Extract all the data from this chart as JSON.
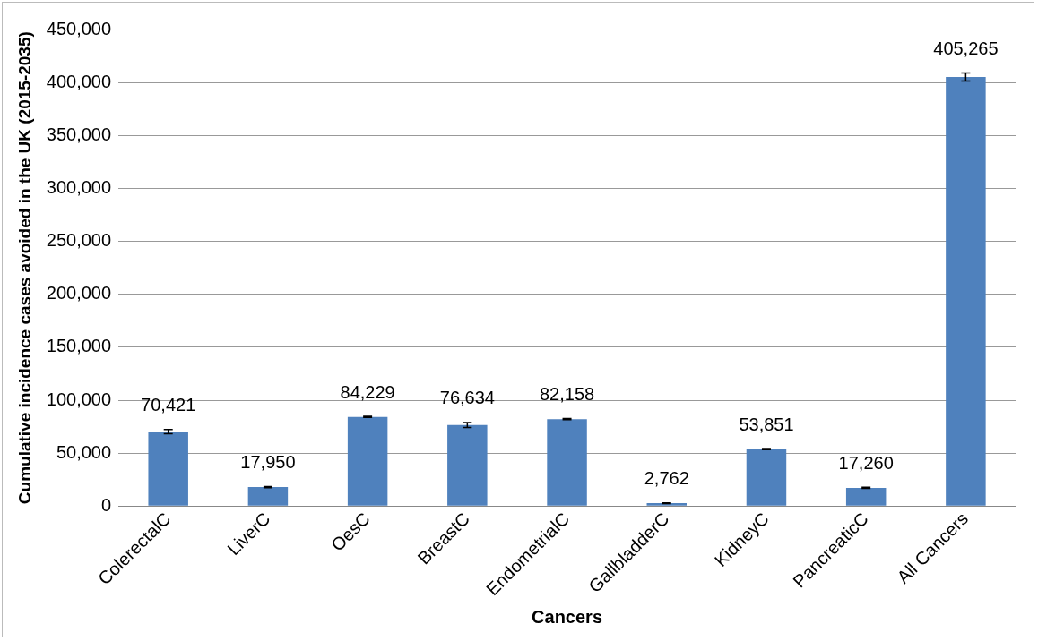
{
  "chart_data": {
    "type": "bar",
    "xlabel": "Cancers",
    "ylabel": "Cumulative incidence cases avoided in the UK (2015-2035)",
    "categories": [
      "ColerectalC",
      "LiverC",
      "OesC",
      "BreastC",
      "EndometrialC",
      "GallbladderC",
      "KidneyC",
      "PancreaticC",
      "All Cancers"
    ],
    "values": [
      70421,
      17950,
      84229,
      76634,
      82158,
      2762,
      53851,
      17260,
      405265
    ],
    "errors": [
      2000,
      500,
      500,
      2300,
      500,
      300,
      500,
      500,
      3800
    ],
    "value_labels": [
      "70,421",
      "17,950",
      "84,229",
      "76,634",
      "82,158",
      "2,762",
      "53,851",
      "17,260",
      "405,265"
    ],
    "color": "#4f81bd",
    "ylim": [
      0,
      450000
    ],
    "yticks": [
      {
        "value": 0,
        "label": "0"
      },
      {
        "value": 50000,
        "label": "50,000"
      },
      {
        "value": 100000,
        "label": "100,000"
      },
      {
        "value": 150000,
        "label": "150,000"
      },
      {
        "value": 200000,
        "label": "200,000"
      },
      {
        "value": 250000,
        "label": "250,000"
      },
      {
        "value": 300000,
        "label": "300,000"
      },
      {
        "value": 350000,
        "label": "350,000"
      },
      {
        "value": 400000,
        "label": "400,000"
      },
      {
        "value": 450000,
        "label": "450,000"
      }
    ],
    "grid": "y",
    "legend": false
  }
}
